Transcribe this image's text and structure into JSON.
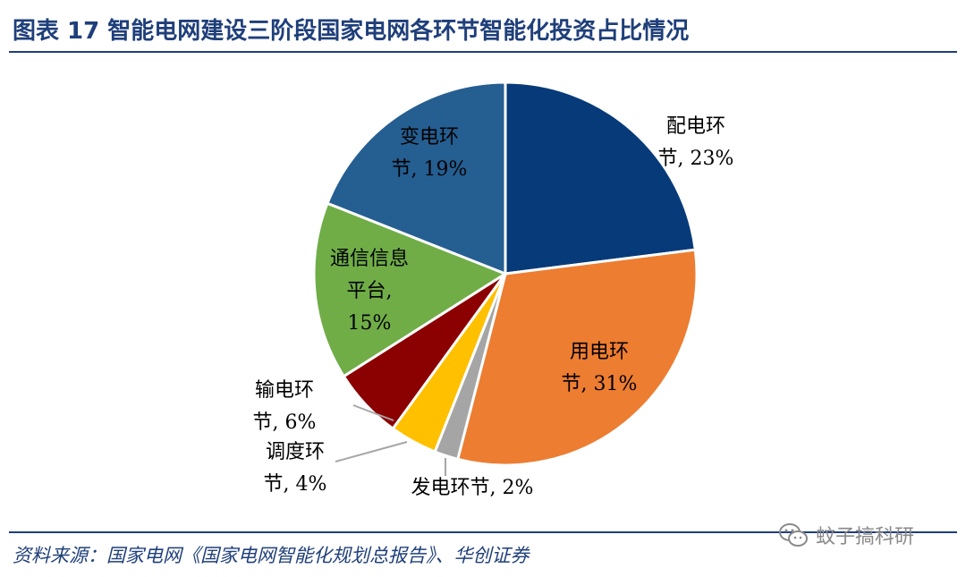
{
  "header": {
    "title": "图表 17 智能电网建设三阶段国家电网各环节智能化投资占比情况"
  },
  "footer": {
    "source": "资料来源：国家电网《国家电网智能化规划总报告》、华创证券",
    "watermark_text": "蚊子搞科研",
    "watermark_icon": "wechat-icon"
  },
  "chart_data": {
    "type": "pie",
    "title": "",
    "slices": [
      {
        "name": "配电环节",
        "value": 23,
        "label_lines": [
          "配电环",
          "节, 23%"
        ],
        "color": "#073a79"
      },
      {
        "name": "用电环节",
        "value": 31,
        "label_lines": [
          "用电环",
          "节, 31%"
        ],
        "color": "#ed7d31"
      },
      {
        "name": "发电环节",
        "value": 2,
        "label_lines": [
          "发电环节, 2%"
        ],
        "color": "#a5a5a5"
      },
      {
        "name": "调度环节",
        "value": 4,
        "label_lines": [
          "调度环",
          "节, 4%"
        ],
        "color": "#ffc000"
      },
      {
        "name": "输电环节",
        "value": 6,
        "label_lines": [
          "输电环",
          "节, 6%"
        ],
        "color": "#8b0000"
      },
      {
        "name": "通信信息平台",
        "value": 15,
        "label_lines": [
          "通信信息",
          "平台,",
          "15%"
        ],
        "color": "#70ad47"
      },
      {
        "name": "变电环节",
        "value": 19,
        "label_lines": [
          "变电环",
          "节, 19%"
        ],
        "color": "#255e91"
      }
    ],
    "legend": "none"
  }
}
